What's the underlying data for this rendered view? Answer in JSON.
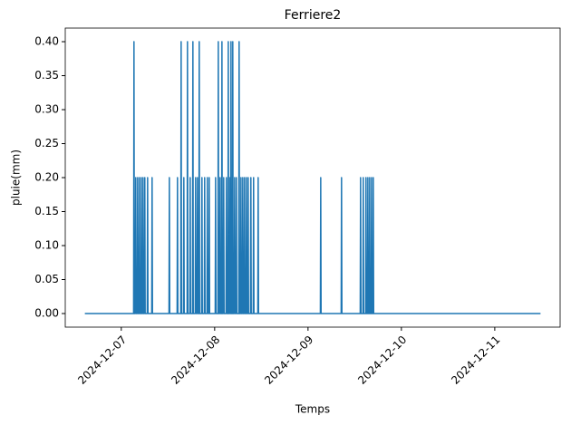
{
  "chart_data": {
    "type": "line",
    "title": "Ferriere2",
    "x_label": "Temps",
    "y_label": "pluie(mm)",
    "x": [
      6.61,
      7.132,
      7.136,
      7.14,
      7.151,
      7.155,
      7.159,
      7.171,
      7.175,
      7.179,
      7.19,
      7.194,
      7.198,
      7.21,
      7.214,
      7.218,
      7.229,
      7.233,
      7.237,
      7.248,
      7.252,
      7.256,
      7.278,
      7.282,
      7.286,
      7.326,
      7.33,
      7.334,
      7.511,
      7.515,
      7.519,
      7.598,
      7.602,
      7.606,
      7.637,
      7.641,
      7.645,
      7.666,
      7.67,
      7.674,
      7.705,
      7.709,
      7.713,
      7.734,
      7.738,
      7.742,
      7.763,
      7.767,
      7.771,
      7.792,
      7.796,
      7.8,
      7.812,
      7.816,
      7.82,
      7.831,
      7.835,
      7.839,
      7.86,
      7.864,
      7.868,
      7.889,
      7.893,
      7.897,
      7.918,
      7.922,
      7.926,
      7.938,
      7.942,
      7.946,
      8.006,
      8.01,
      8.014,
      8.035,
      8.039,
      8.043,
      8.054,
      8.058,
      8.062,
      8.074,
      8.078,
      8.082,
      8.093,
      8.097,
      8.101,
      8.122,
      8.126,
      8.13,
      8.142,
      8.146,
      8.15,
      8.161,
      8.165,
      8.169,
      8.171,
      8.175,
      8.179,
      8.19,
      8.194,
      8.198,
      8.21,
      8.214,
      8.218,
      8.229,
      8.233,
      8.237,
      8.258,
      8.262,
      8.266,
      8.278,
      8.282,
      8.286,
      8.297,
      8.301,
      8.305,
      8.316,
      8.32,
      8.324,
      8.336,
      8.34,
      8.344,
      8.355,
      8.359,
      8.363,
      8.384,
      8.388,
      8.392,
      8.413,
      8.417,
      8.421,
      8.462,
      8.466,
      8.47,
      9.132,
      9.136,
      9.14,
      9.355,
      9.359,
      9.363,
      9.559,
      9.563,
      9.567,
      9.588,
      9.592,
      9.596,
      9.617,
      9.621,
      9.625,
      9.637,
      9.641,
      9.645,
      9.656,
      9.66,
      9.664,
      9.676,
      9.68,
      9.684,
      9.695,
      9.699,
      9.703,
      11.49
    ],
    "series": [
      {
        "color": "#1f77b4",
        "values": [
          0,
          0,
          0.4,
          0,
          0,
          0.2,
          0,
          0,
          0.2,
          0,
          0,
          0.2,
          0,
          0,
          0.2,
          0,
          0,
          0.2,
          0,
          0,
          0.2,
          0,
          0,
          0.2,
          0,
          0,
          0.2,
          0,
          0,
          0.2,
          0,
          0,
          0.2,
          0,
          0,
          0.4,
          0,
          0,
          0.2,
          0,
          0,
          0.4,
          0,
          0,
          0.2,
          0,
          0,
          0.4,
          0,
          0,
          0.2,
          0,
          0,
          0.2,
          0,
          0,
          0.4,
          0,
          0,
          0.2,
          0,
          0,
          0.2,
          0,
          0,
          0.2,
          0,
          0,
          0.2,
          0,
          0,
          0.2,
          0,
          0,
          0.4,
          0,
          0,
          0.2,
          0,
          0,
          0.4,
          0,
          0,
          0.2,
          0,
          0,
          0.2,
          0,
          0,
          0.4,
          0,
          0,
          0.2,
          0,
          0,
          0.4,
          0,
          0,
          0.4,
          0,
          0,
          0.2,
          0,
          0,
          0.2,
          0,
          0,
          0.4,
          0,
          0,
          0.2,
          0,
          0,
          0.2,
          0,
          0,
          0.2,
          0,
          0,
          0.2,
          0,
          0,
          0.2,
          0,
          0,
          0.2,
          0,
          0,
          0.2,
          0,
          0,
          0.2,
          0,
          0,
          0.2,
          0,
          0,
          0.2,
          0,
          0,
          0.2,
          0,
          0,
          0.2,
          0,
          0,
          0.2,
          0,
          0,
          0.2,
          0,
          0,
          0.2,
          0,
          0,
          0.2,
          0,
          0,
          0.2,
          0,
          0
        ]
      }
    ],
    "xlim": [
      6.4,
      11.7
    ],
    "xticks": [
      {
        "value": 7,
        "label": "2024-12-07"
      },
      {
        "value": 8,
        "label": "2024-12-08"
      },
      {
        "value": 9,
        "label": "2024-12-09"
      },
      {
        "value": 10,
        "label": "2024-12-10"
      },
      {
        "value": 11,
        "label": "2024-12-11"
      }
    ],
    "ylim": [
      -0.02,
      0.42
    ],
    "yticks": [
      {
        "value": 0,
        "label": "0.00"
      },
      {
        "value": 0.05,
        "label": "0.05"
      },
      {
        "value": 0.1,
        "label": "0.10"
      },
      {
        "value": 0.15,
        "label": "0.15"
      },
      {
        "value": 0.2,
        "label": "0.20"
      },
      {
        "value": 0.25,
        "label": "0.25"
      },
      {
        "value": 0.3,
        "label": "0.30"
      },
      {
        "value": 0.35,
        "label": "0.35"
      },
      {
        "value": 0.4,
        "label": "0.40"
      }
    ]
  }
}
